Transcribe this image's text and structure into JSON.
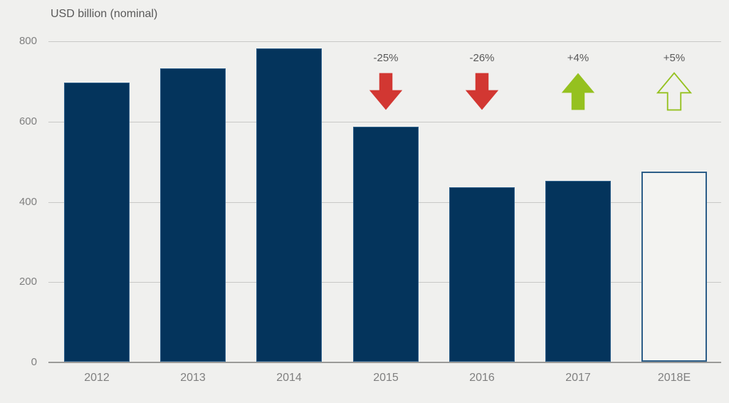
{
  "chart_data": {
    "type": "bar",
    "title": "USD billion (nominal)",
    "xlabel": "",
    "ylabel": "USD billion (nominal)",
    "categories": [
      "2012",
      "2013",
      "2014",
      "2015",
      "2016",
      "2017",
      "2018E"
    ],
    "values": [
      695,
      730,
      780,
      585,
      435,
      450,
      473
    ],
    "ylim": [
      0,
      800
    ],
    "yticks": [
      0,
      200,
      400,
      600,
      800
    ],
    "grid": true,
    "legend": "none",
    "forecast_category": "2018E",
    "annotations": [
      {
        "category": "2015",
        "label": "-25%",
        "direction": "down",
        "style": "solid",
        "color": "#d23732"
      },
      {
        "category": "2016",
        "label": "-26%",
        "direction": "down",
        "style": "solid",
        "color": "#d23732"
      },
      {
        "category": "2017",
        "label": "+4%",
        "direction": "up",
        "style": "solid",
        "color": "#95c11f"
      },
      {
        "category": "2018E",
        "label": "+5%",
        "direction": "up",
        "style": "outline",
        "color": "#95c11f"
      }
    ],
    "colors": {
      "background": "#f0f0ee",
      "bar_fill": "#04345c",
      "bar_border": "#2e618c",
      "forecast_fill": "#f3f3f1",
      "forecast_border": "#2d5e88",
      "negative_arrow": "#d23732",
      "positive_arrow": "#95c11f",
      "title_text": "#595959",
      "axis_text": "#7f7f7f",
      "gridline": "#c8c8c6",
      "axis_line": "#9a9a98"
    }
  }
}
